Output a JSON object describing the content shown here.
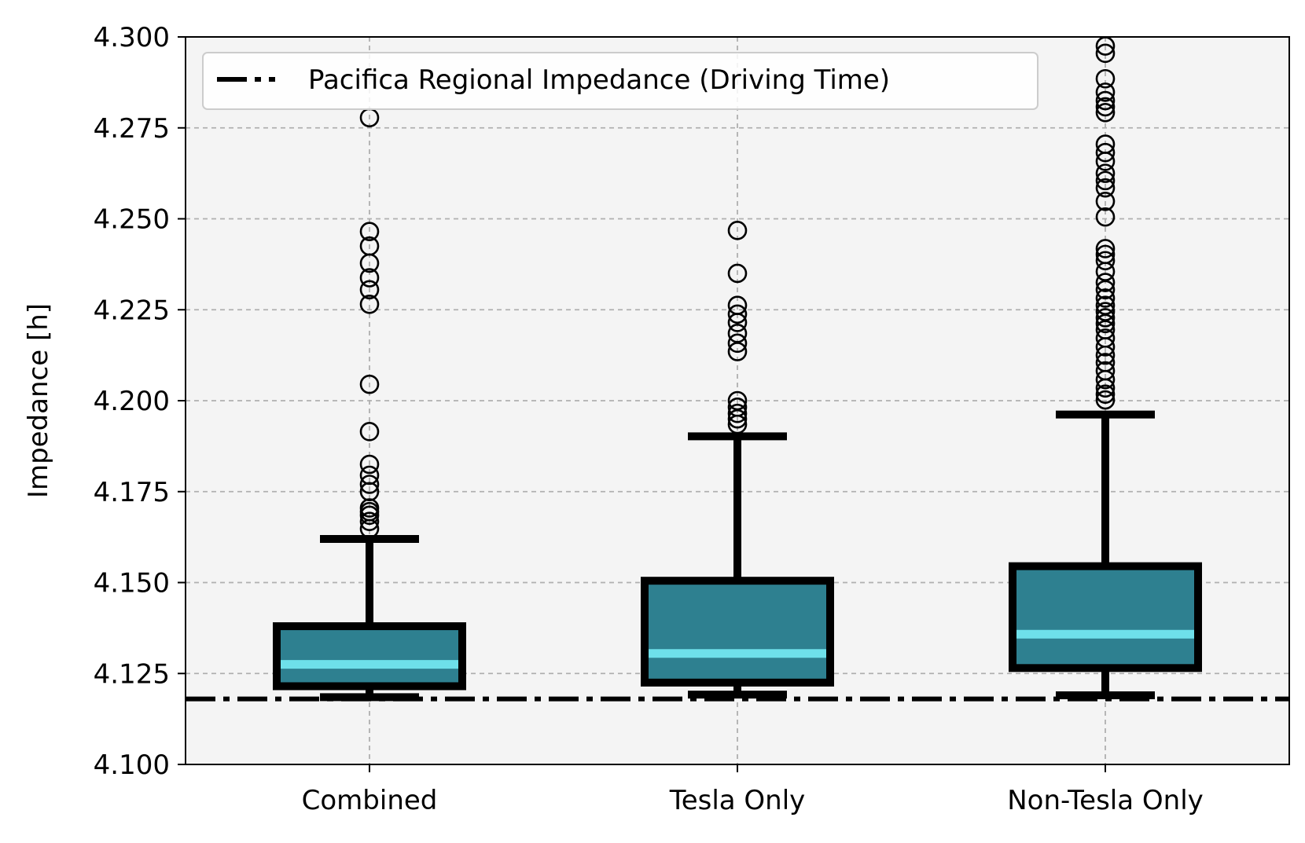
{
  "chart_data": {
    "type": "box",
    "title": "",
    "xlabel": "",
    "ylabel": "Impedance [h]",
    "ylim": [
      4.1,
      4.3
    ],
    "yticks": [
      "4.100",
      "4.125",
      "4.150",
      "4.175",
      "4.200",
      "4.225",
      "4.250",
      "4.275",
      "4.300"
    ],
    "ytick_values": [
      4.1,
      4.125,
      4.15,
      4.175,
      4.2,
      4.225,
      4.25,
      4.275,
      4.3
    ],
    "categories": [
      "Combined",
      "Tesla Only",
      "Non-Tesla Only"
    ],
    "grid": true,
    "legend_position": "top-left",
    "reference_line": {
      "label": "Pacifica Regional Impedance (Driving Time)",
      "value": 4.118,
      "style": "dash-dot",
      "color": "#000000"
    },
    "colors": {
      "box_fill": "#2e8090",
      "median": "#6ee0ea",
      "edge": "#000000",
      "plot_bg": "#f4f4f4",
      "grid": "#b0b0b0"
    },
    "boxes": [
      {
        "name": "Combined",
        "whisker_low": 4.1185,
        "q1": 4.1215,
        "median": 4.1275,
        "q3": 4.138,
        "whisker_high": 4.162,
        "outliers": [
          4.1648,
          4.1668,
          4.1685,
          4.1695,
          4.1705,
          4.175,
          4.177,
          4.1795,
          4.1825,
          4.1915,
          4.2045,
          4.2265,
          4.2305,
          4.2338,
          4.2378,
          4.2425,
          4.2465,
          4.2778
        ]
      },
      {
        "name": "Tesla Only",
        "whisker_low": 4.1192,
        "q1": 4.1225,
        "median": 4.1305,
        "q3": 4.1505,
        "whisker_high": 4.1902,
        "outliers": [
          4.1935,
          4.195,
          4.1965,
          4.1982,
          4.2,
          4.2135,
          4.2158,
          4.2185,
          4.2215,
          4.2238,
          4.2262,
          4.235,
          4.2468
        ]
      },
      {
        "name": "Non-Tesla Only",
        "whisker_low": 4.119,
        "q1": 4.1265,
        "median": 4.1358,
        "q3": 4.1545,
        "whisker_high": 4.1962,
        "outliers": [
          4.2002,
          4.2018,
          4.2035,
          4.2058,
          4.2082,
          4.2105,
          4.2125,
          4.2148,
          4.2172,
          4.2195,
          4.2212,
          4.2228,
          4.2245,
          4.2262,
          4.2282,
          4.2305,
          4.2325,
          4.2355,
          4.2385,
          4.2402,
          4.2418,
          4.2505,
          4.2548,
          4.2585,
          4.2605,
          4.2625,
          4.2658,
          4.2682,
          4.2705,
          4.2792,
          4.2808,
          4.2825,
          4.2848,
          4.2885,
          4.2955,
          4.2975
        ]
      }
    ]
  }
}
